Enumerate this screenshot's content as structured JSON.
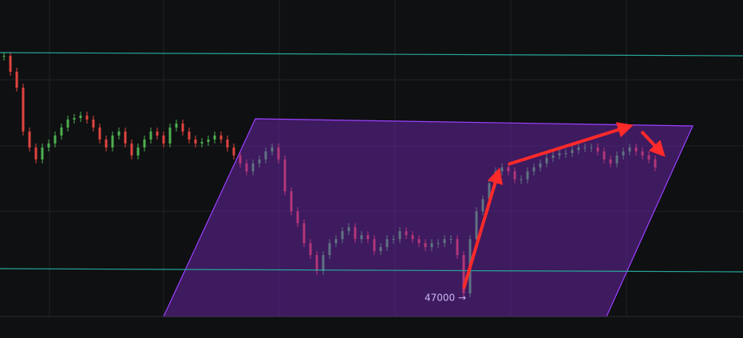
{
  "chart_data": {
    "type": "candlestick",
    "annotation": "47000 →",
    "up_color": "#4caf50",
    "down_color": "#e0443e",
    "ylim": [
      46700,
      50680
    ],
    "values": [
      49980,
      49780,
      49580,
      49030,
      48830,
      48680,
      48830,
      48880,
      48980,
      49080,
      49180,
      49200,
      49230,
      49180,
      49080,
      48930,
      48830,
      48980,
      49030,
      48880,
      48730,
      48830,
      48930,
      49030,
      48980,
      48880,
      49080,
      49130,
      49030,
      48930,
      48880,
      48900,
      48930,
      48980,
      48930,
      48830,
      48730,
      48630,
      48530,
      48630,
      48680,
      48780,
      48830,
      48680,
      48280,
      48030,
      47880,
      47630,
      47480,
      47280,
      47480,
      47630,
      47680,
      47780,
      47830,
      47680,
      47730,
      47680,
      47530,
      47580,
      47680,
      47680,
      47780,
      47730,
      47680,
      47630,
      47580,
      47630,
      47630,
      47680,
      47680,
      47480,
      47000,
      47680,
      48030,
      48180,
      48380,
      48530,
      48580,
      48530,
      48430,
      48430,
      48530,
      48580,
      48630,
      48700,
      48730,
      48760,
      48760,
      48800,
      48830,
      48830,
      48830,
      48780,
      48680,
      48630,
      48730,
      48780,
      48830,
      48780,
      48730,
      48680,
      48580
    ]
  }
}
